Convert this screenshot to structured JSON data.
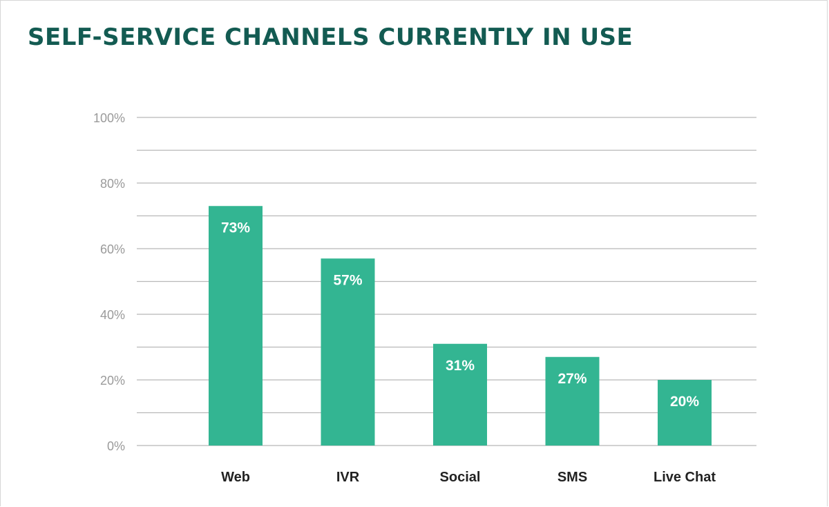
{
  "chart_data": {
    "type": "bar",
    "title": "SELF-SERVICE CHANNELS CURRENTLY IN USE",
    "categories": [
      "Web",
      "IVR",
      "Social",
      "SMS",
      "Live Chat"
    ],
    "values": [
      73,
      57,
      31,
      27,
      20
    ],
    "data_labels": [
      "73%",
      "57%",
      "31%",
      "27%",
      "20%"
    ],
    "ylim": [
      0,
      100
    ],
    "y_ticks": [
      0,
      20,
      40,
      60,
      80,
      100
    ],
    "y_tick_labels": [
      "0%",
      "20%",
      "40%",
      "60%",
      "80%",
      "100%"
    ],
    "minor_gridlines": [
      10,
      30,
      50,
      70,
      90
    ],
    "grid": true,
    "legend": "none",
    "bar_color": "#33b592",
    "grid_color": "#b8b8b8",
    "title_color": "#135b52"
  }
}
